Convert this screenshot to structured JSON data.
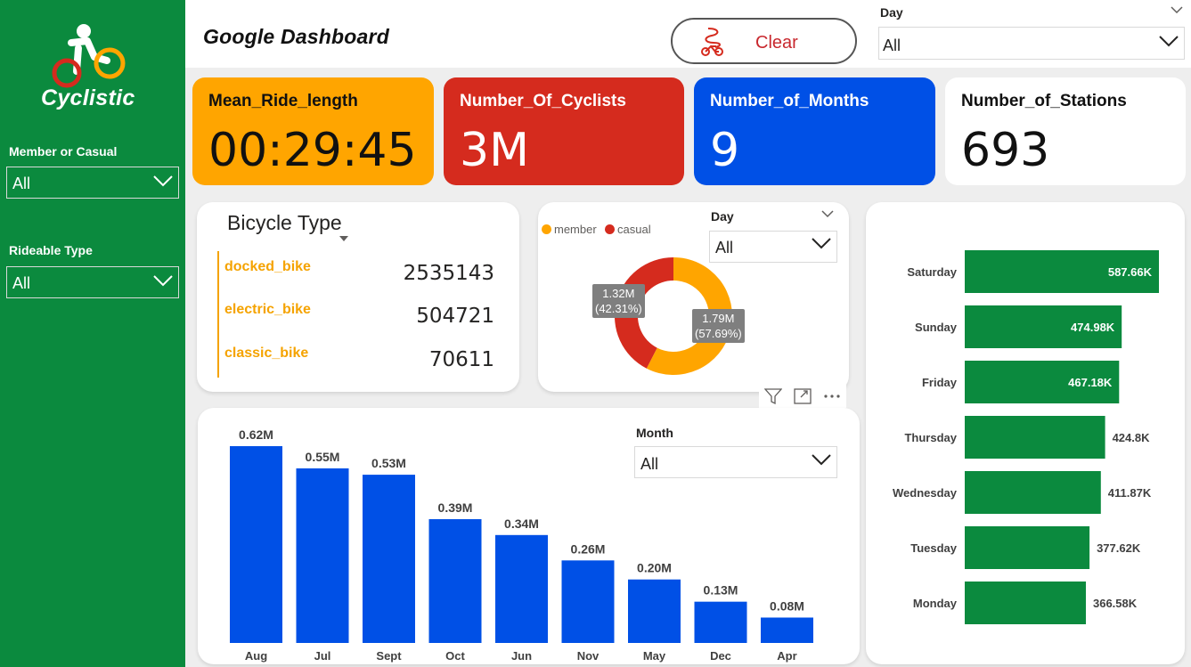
{
  "header": {
    "title": "Google Dashboard",
    "clear_label": "Clear"
  },
  "sidebar": {
    "logo_text": "Cyclistic",
    "member_filter": {
      "label": "Member or Casual",
      "value": "All"
    },
    "rideable_filter": {
      "label": "Rideable Type",
      "value": "All"
    }
  },
  "day_filter_top": {
    "label": "Day",
    "value": "All"
  },
  "kpis": [
    {
      "label": "Mean_Ride_length",
      "value": "00:29:45",
      "bg": "#ffa500",
      "fg": "#111111"
    },
    {
      "label": "Number_Of_Cyclists",
      "value": "3M",
      "bg": "#d52b1e",
      "fg": "#ffffff"
    },
    {
      "label": "Number_of_Months",
      "value": "9",
      "bg": "#0050e6",
      "fg": "#ffffff"
    },
    {
      "label": "Number_of_Stations",
      "value": "693",
      "bg": "#ffffff",
      "fg": "#111111"
    }
  ],
  "bicycle_type": {
    "title": "Bicycle Type",
    "rows": [
      {
        "name": "docked_bike",
        "value": "2535143"
      },
      {
        "name": "electric_bike",
        "value": "504721"
      },
      {
        "name": "classic_bike",
        "value": "70611"
      }
    ]
  },
  "donut": {
    "day_filter": {
      "label": "Day",
      "value": "All"
    },
    "legend": [
      {
        "name": "member",
        "color": "#ffa500"
      },
      {
        "name": "casual",
        "color": "#d52b1e"
      }
    ]
  },
  "month_filter": {
    "label": "Month",
    "value": "All"
  },
  "colors": {
    "green": "#0b8a3e",
    "blue": "#0050e6",
    "orange": "#ffa500",
    "red": "#d52b1e"
  },
  "chart_data": [
    {
      "type": "pie",
      "categories": [
        "member",
        "casual"
      ],
      "values": [
        1.79,
        1.32
      ],
      "labels": [
        "1.79M\n(57.69%)",
        "1.32M\n(42.31%)"
      ],
      "percents": [
        57.69,
        42.31
      ],
      "legend": "top-left"
    },
    {
      "type": "bar",
      "categories": [
        "Aug",
        "Jul",
        "Sept",
        "Oct",
        "Jun",
        "Nov",
        "May",
        "Dec",
        "Apr"
      ],
      "values": [
        0.62,
        0.55,
        0.53,
        0.39,
        0.34,
        0.26,
        0.2,
        0.13,
        0.08
      ],
      "labels": [
        "0.62M",
        "0.55M",
        "0.53M",
        "0.39M",
        "0.34M",
        "0.26M",
        "0.20M",
        "0.13M",
        "0.08M"
      ],
      "ylim": [
        0,
        0.62
      ]
    },
    {
      "type": "bar",
      "orientation": "horizontal",
      "categories": [
        "Saturday",
        "Sunday",
        "Friday",
        "Thursday",
        "Wednesday",
        "Tuesday",
        "Monday"
      ],
      "values": [
        587.66,
        474.98,
        467.18,
        424.8,
        411.87,
        377.62,
        366.58
      ],
      "labels": [
        "587.66K",
        "474.98K",
        "467.18K",
        "424.8K",
        "411.87K",
        "377.62K",
        "366.58K"
      ],
      "xlim": [
        0,
        587.66
      ]
    }
  ]
}
